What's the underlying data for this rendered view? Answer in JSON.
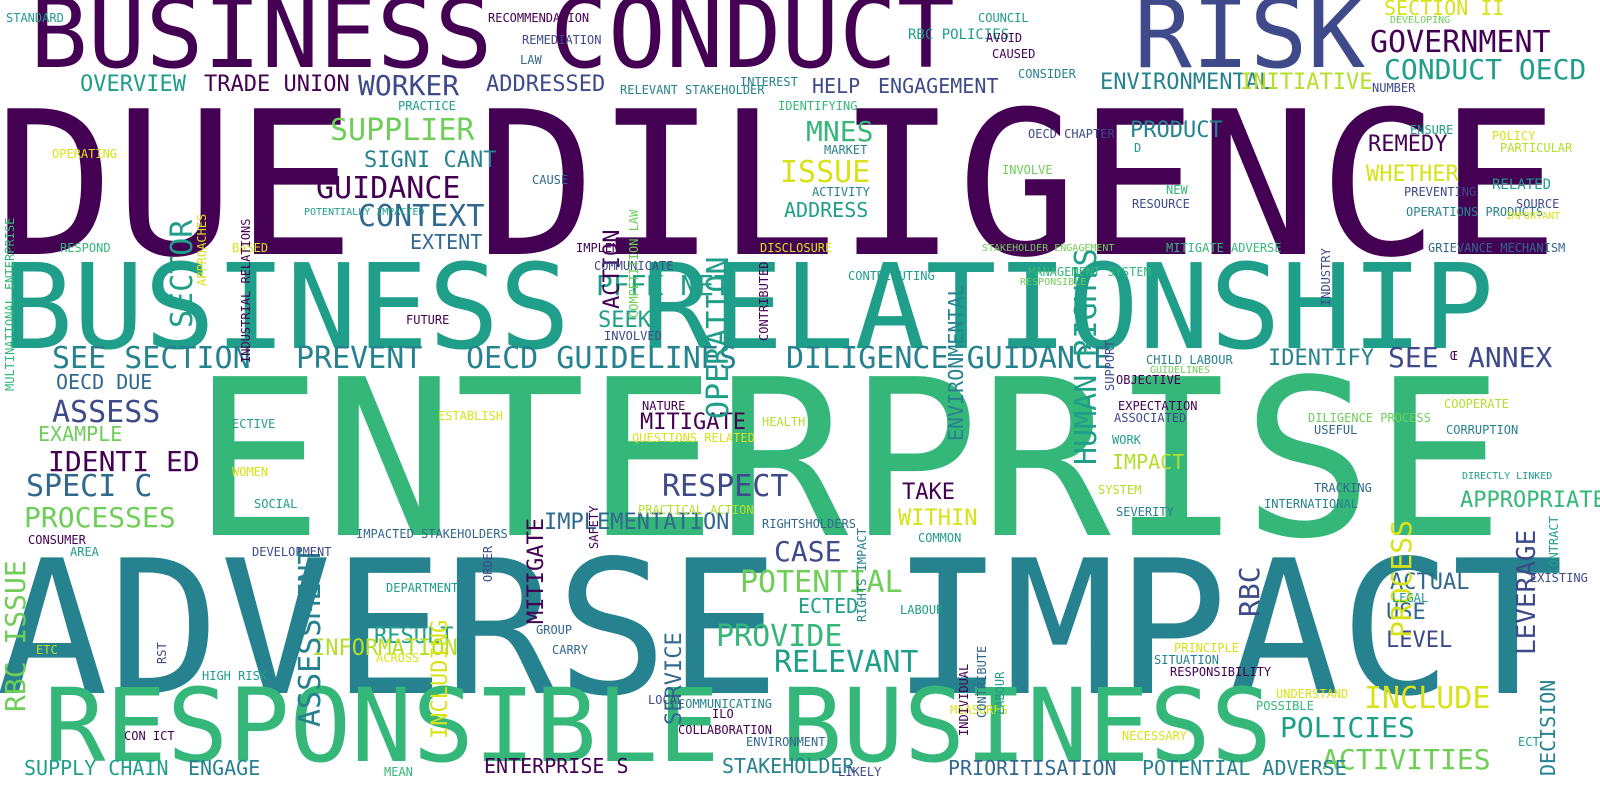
{
  "palette": {
    "purple": "#440154",
    "indigo": "#3e4a89",
    "slate": "#31688e",
    "teal": "#26828e",
    "sea": "#1f9e89",
    "green": "#35b779",
    "lime": "#6ece58",
    "yellowgreen": "#b5de2b",
    "yellow": "#d8e219"
  },
  "words": [
    {
      "text": "DUE DILIGENCE",
      "color": "#440154"
    },
    {
      "text": "ENTERPRISE",
      "color": "#35b779"
    },
    {
      "text": "ADVERSE IMPACT",
      "color": "#26828e"
    },
    {
      "text": "BUSINESS RELATIONSHIP",
      "color": "#1f9e89"
    },
    {
      "text": "BUSINESS CONDUCT",
      "color": "#440154"
    },
    {
      "text": "RISK",
      "color": "#3e4a89"
    },
    {
      "text": "RESPONSIBLE BUSINESS",
      "color": "#35b779"
    },
    {
      "text": "SEE SECTION",
      "color": "#26828e"
    },
    {
      "text": "PREVENT",
      "color": "#26828e"
    },
    {
      "text": "OECD GUIDELINES",
      "color": "#26828e"
    },
    {
      "text": "DILIGENCE GUIDANCE",
      "color": "#26828e"
    },
    {
      "text": "SEE",
      "color": "#3e4a89"
    },
    {
      "text": "ANNEX",
      "color": "#3e4a89"
    },
    {
      "text": "Œ",
      "color": "#440154"
    },
    {
      "text": "TRADE UNION",
      "color": "#440154"
    },
    {
      "text": "OVERVIEW",
      "color": "#1f9e89"
    },
    {
      "text": "WORKER",
      "color": "#3e4a89"
    },
    {
      "text": "ADDRESSED",
      "color": "#3e4a89"
    },
    {
      "text": "SUPPLIER",
      "color": "#6ece58"
    },
    {
      "text": "SIGNI CANT",
      "color": "#26828e"
    },
    {
      "text": "GUIDANCE",
      "color": "#440154"
    },
    {
      "text": "CONTEXT",
      "color": "#31688e"
    },
    {
      "text": "EXTENT",
      "color": "#31688e"
    },
    {
      "text": "SECTOR",
      "color": "#1f9e89"
    },
    {
      "text": "MNES",
      "color": "#35b779"
    },
    {
      "text": "ISSUE",
      "color": "#d8e219"
    },
    {
      "text": "ADDRESS",
      "color": "#1f9e89"
    },
    {
      "text": "HELP",
      "color": "#3e4a89"
    },
    {
      "text": "ENGAGEMENT",
      "color": "#3e4a89"
    },
    {
      "text": "OPERATION",
      "color": "#1f9e89"
    },
    {
      "text": "ACTION",
      "color": "#440154"
    },
    {
      "text": "HUMAN RIGHTS",
      "color": "#1f9e89"
    },
    {
      "text": "ENVIRONMENTAL",
      "color": "#26828e"
    },
    {
      "text": "INITIATIVE",
      "color": "#b5de2b"
    },
    {
      "text": "GOVERNMENT",
      "color": "#440154"
    },
    {
      "text": "SECTION II",
      "color": "#d8e219"
    },
    {
      "text": "CONDUCT OECD",
      "color": "#1f9e89"
    },
    {
      "text": "PRODUCT",
      "color": "#26828e"
    },
    {
      "text": "REMEDY",
      "color": "#440154"
    },
    {
      "text": "WHETHER",
      "color": "#d8e219"
    },
    {
      "text": "RELATED",
      "color": "#1f9e89"
    },
    {
      "text": "PFFK NET",
      "color": "#1f9e89"
    },
    {
      "text": "SEEK",
      "color": "#1f9e89"
    },
    {
      "text": "ASSESS",
      "color": "#3e4a89"
    },
    {
      "text": "EXAMPLE",
      "color": "#6ece58"
    },
    {
      "text": "IDENTI ED",
      "color": "#440154"
    },
    {
      "text": "SPECI C",
      "color": "#31688e"
    },
    {
      "text": "PROCESSES",
      "color": "#6ece58"
    },
    {
      "text": "OECD DUE",
      "color": "#31688e"
    },
    {
      "text": "RBC ISSUE",
      "color": "#6ece58"
    },
    {
      "text": "ASSESSMENT",
      "color": "#26828e"
    },
    {
      "text": "INCLUDING",
      "color": "#d8e219"
    },
    {
      "text": "IMPLEMENTATION",
      "color": "#31688e"
    },
    {
      "text": "MITIGATE",
      "color": "#440154"
    },
    {
      "text": "RESPECT",
      "color": "#3e4a89"
    },
    {
      "text": "TAKE",
      "color": "#440154"
    },
    {
      "text": "WITHIN",
      "color": "#d8e219"
    },
    {
      "text": "RBC",
      "color": "#3e4a89"
    },
    {
      "text": "PROCESS",
      "color": "#d8e219"
    },
    {
      "text": "LEVERAGE",
      "color": "#3e4a89"
    },
    {
      "text": "APPROPRIATE",
      "color": "#35b779"
    },
    {
      "text": "IDENTIFY",
      "color": "#26828e"
    },
    {
      "text": "IMPACT",
      "color": "#b5de2b"
    },
    {
      "text": "CASE",
      "color": "#3e4a89"
    },
    {
      "text": "POTENTIAL",
      "color": "#6ece58"
    },
    {
      "text": "ECTED",
      "color": "#1f9e89"
    },
    {
      "text": "PROVIDE",
      "color": "#35b779"
    },
    {
      "text": "RELEVANT",
      "color": "#1f9e89"
    },
    {
      "text": "RESULT",
      "color": "#1f9e89"
    },
    {
      "text": "INFORMATION",
      "color": "#b5de2b"
    },
    {
      "text": "SERVICE",
      "color": "#31688e"
    },
    {
      "text": "ACTUAL",
      "color": "#31688e"
    },
    {
      "text": "USE",
      "color": "#31688e"
    },
    {
      "text": "LEVEL",
      "color": "#3e4a89"
    },
    {
      "text": "INCLUDE",
      "color": "#d8e219"
    },
    {
      "text": "POLICIES",
      "color": "#1f9e89"
    },
    {
      "text": "DECISION",
      "color": "#26828e"
    },
    {
      "text": "ACTIVITIES",
      "color": "#6ece58"
    },
    {
      "text": "SUPPLY CHAIN",
      "color": "#1f9e89"
    },
    {
      "text": "ENGAGE",
      "color": "#26828e"
    },
    {
      "text": "ENTERPRISE S",
      "color": "#440154"
    },
    {
      "text": "STAKEHOLDER",
      "color": "#26828e"
    },
    {
      "text": "PRIORITISATION",
      "color": "#31688e"
    },
    {
      "text": "POTENTIAL ADVERSE",
      "color": "#26828e"
    },
    {
      "text": "STANDARD",
      "color": "#1f9e89"
    },
    {
      "text": "RECOMMENDATION",
      "color": "#440154"
    },
    {
      "text": "REMEDIATION",
      "color": "#3e4a89"
    },
    {
      "text": "LAW",
      "color": "#31688e"
    },
    {
      "text": "RBC POLICIES",
      "color": "#1f9e89"
    },
    {
      "text": "COUNCIL",
      "color": "#1f9e89"
    },
    {
      "text": "AVOID",
      "color": "#440154"
    },
    {
      "text": "CAUSED",
      "color": "#440154"
    },
    {
      "text": "DEVELOPING",
      "color": "#6ece58"
    },
    {
      "text": "CONSIDER",
      "color": "#26828e"
    },
    {
      "text": "INTEREST",
      "color": "#26828e"
    },
    {
      "text": "RELEVANT STAKEHOLDER",
      "color": "#26828e"
    },
    {
      "text": "NUMBER",
      "color": "#3e4a89"
    },
    {
      "text": "PRACTICE",
      "color": "#1f9e89"
    },
    {
      "text": "IDENTIFYING",
      "color": "#35b779"
    },
    {
      "text": "MULTINATIONAL ENTERPRISE",
      "color": "#35b779"
    },
    {
      "text": "OPERATING",
      "color": "#d8e219"
    },
    {
      "text": "APPROACHES",
      "color": "#d8e219"
    },
    {
      "text": "INDUSTRIAL RELATIONS",
      "color": "#440154"
    },
    {
      "text": "CAUSE",
      "color": "#31688e"
    },
    {
      "text": "COMPETITION LAW",
      "color": "#6ece58"
    },
    {
      "text": "CONTRIBUTED",
      "color": "#440154"
    },
    {
      "text": "MARKET",
      "color": "#26828e"
    },
    {
      "text": "ACTIVITY",
      "color": "#26828e"
    },
    {
      "text": "POTENTIALLY IMPACTED",
      "color": "#1f9e89"
    },
    {
      "text": "INVOLVE",
      "color": "#6ece58"
    },
    {
      "text": "OECD CHAPTER",
      "color": "#3e4a89"
    },
    {
      "text": "D",
      "color": "#1f9e89"
    },
    {
      "text": "NEW",
      "color": "#35b779"
    },
    {
      "text": "RESOURCE",
      "color": "#3e4a89"
    },
    {
      "text": "INDUSTRY",
      "color": "#3e4a89"
    },
    {
      "text": "ENSURE",
      "color": "#1f9e89"
    },
    {
      "text": "PREVENTING",
      "color": "#3e4a89"
    },
    {
      "text": "OPERATIONS PRODUCTS",
      "color": "#26828e"
    },
    {
      "text": "POLICY",
      "color": "#d8e219"
    },
    {
      "text": "PARTICULAR",
      "color": "#b5de2b"
    },
    {
      "text": "SOURCE",
      "color": "#3e4a89"
    },
    {
      "text": "IMPORTANT",
      "color": "#d8e219"
    },
    {
      "text": "RESPOND",
      "color": "#35b779"
    },
    {
      "text": "BASED",
      "color": "#d8e219"
    },
    {
      "text": "IMPLEMENT",
      "color": "#440154"
    },
    {
      "text": "DISCLOSURE",
      "color": "#d8e219"
    },
    {
      "text": "STAKEHOLDER ENGAGEMENT",
      "color": "#6ece58"
    },
    {
      "text": "MITIGATE ADVERSE",
      "color": "#35b779"
    },
    {
      "text": "GRIEVANCE MECHANISM",
      "color": "#31688e"
    },
    {
      "text": "COMMUNICATE",
      "color": "#3e4a89"
    },
    {
      "text": "CONTRIBUTING",
      "color": "#1f9e89"
    },
    {
      "text": "MANAGEMENT SYSTEM",
      "color": "#35b779"
    },
    {
      "text": "RESPONSIBLE",
      "color": "#6ece58"
    },
    {
      "text": "SUPPORT",
      "color": "#3e4a89"
    },
    {
      "text": "FUTURE",
      "color": "#440154"
    },
    {
      "text": "INVOLVED",
      "color": "#3e4a89"
    },
    {
      "text": "CHILD LABOUR",
      "color": "#26828e"
    },
    {
      "text": "GUIDELINES",
      "color": "#6ece58"
    },
    {
      "text": "OBJECTIVE",
      "color": "#440154"
    },
    {
      "text": "EXPECTATION",
      "color": "#440154"
    },
    {
      "text": "ASSOCIATED",
      "color": "#3e4a89"
    },
    {
      "text": "WORK",
      "color": "#1f9e89"
    },
    {
      "text": "SYSTEM",
      "color": "#b5de2b"
    },
    {
      "text": "SEVERITY",
      "color": "#26828e"
    },
    {
      "text": "ESTABLISH",
      "color": "#d8e219"
    },
    {
      "text": "ECTIVE",
      "color": "#1f9e89"
    },
    {
      "text": "ORDER",
      "color": "#3e4a89"
    },
    {
      "text": "SAFETY",
      "color": "#440154"
    },
    {
      "text": "NATURE",
      "color": "#440154"
    },
    {
      "text": "QUESTIONS RELATED",
      "color": "#d8e219"
    },
    {
      "text": "PRACTICAL ACTION",
      "color": "#b5de2b"
    },
    {
      "text": "HEALTH",
      "color": "#b5de2b"
    },
    {
      "text": "RIGHTS IMPACT",
      "color": "#26828e"
    },
    {
      "text": "RIGHTSHOLDERS",
      "color": "#31688e"
    },
    {
      "text": "COMMON",
      "color": "#1f9e89"
    },
    {
      "text": "DILIGENCE PROCESS",
      "color": "#6ece58"
    },
    {
      "text": "USEFUL",
      "color": "#31688e"
    },
    {
      "text": "COOPERATE",
      "color": "#b5de2b"
    },
    {
      "text": "CORRUPTION",
      "color": "#26828e"
    },
    {
      "text": "CONTRACT",
      "color": "#1f9e89"
    },
    {
      "text": "DIRECTLY LINKED",
      "color": "#1f9e89"
    },
    {
      "text": "TRACKING",
      "color": "#31688e"
    },
    {
      "text": "INTERNATIONAL",
      "color": "#26828e"
    },
    {
      "text": "CONSUMER",
      "color": "#440154"
    },
    {
      "text": "AREA",
      "color": "#1f9e89"
    },
    {
      "text": "DEVELOPMENT",
      "color": "#3e4a89"
    },
    {
      "text": "IMPACTED STAKEHOLDERS",
      "color": "#31688e"
    },
    {
      "text": "WOMEN",
      "color": "#d8e219"
    },
    {
      "text": "SOCIAL",
      "color": "#1f9e89"
    },
    {
      "text": "RST",
      "color": "#3e4a89"
    },
    {
      "text": "DEPARTMENT",
      "color": "#1f9e89"
    },
    {
      "text": "ETC",
      "color": "#b5de2b"
    },
    {
      "text": "HIGH RISK",
      "color": "#1f9e89"
    },
    {
      "text": "ACROSS",
      "color": "#d8e219"
    },
    {
      "text": "GROUP",
      "color": "#31688e"
    },
    {
      "text": "CARRY",
      "color": "#31688e"
    },
    {
      "text": "INDIVIDUAL",
      "color": "#440154"
    },
    {
      "text": "CONTRIBUTE",
      "color": "#31688e"
    },
    {
      "text": "LABOUR",
      "color": "#1f9e89"
    },
    {
      "text": "PRINCIPLE",
      "color": "#d8e219"
    },
    {
      "text": "SITUATION",
      "color": "#26828e"
    },
    {
      "text": "RESPONSIBILITY",
      "color": "#440154"
    },
    {
      "text": "LEGAL",
      "color": "#1f9e89"
    },
    {
      "text": "EXISTING",
      "color": "#3e4a89"
    },
    {
      "text": "UNDERSTAND",
      "color": "#d8e219"
    },
    {
      "text": "POSSIBLE",
      "color": "#35b779"
    },
    {
      "text": "COMMUNICATING",
      "color": "#26828e"
    },
    {
      "text": "ILO",
      "color": "#440154"
    },
    {
      "text": "MEASURES",
      "color": "#d8e219"
    },
    {
      "text": "COLLABORATION",
      "color": "#440154"
    },
    {
      "text": "ENVIRONMENT",
      "color": "#31688e"
    },
    {
      "text": "NECESSARY",
      "color": "#d8e219"
    },
    {
      "text": "ECT",
      "color": "#1f9e89"
    },
    {
      "text": "CON ICT",
      "color": "#440154"
    },
    {
      "text": "MEAN",
      "color": "#35b779"
    },
    {
      "text": "LIKELY",
      "color": "#3e4a89"
    },
    {
      "text": "LOCAL",
      "color": "#3e4a89"
    },
    {
      "text": "ACCOUNT",
      "color": "#31688e"
    },
    {
      "text": "PRIORITISE",
      "color": "#3e4a89"
    },
    {
      "text": "MANAGEMENT",
      "color": "#440154"
    },
    {
      "text": "C",
      "color": "#1f9e89"
    }
  ]
}
